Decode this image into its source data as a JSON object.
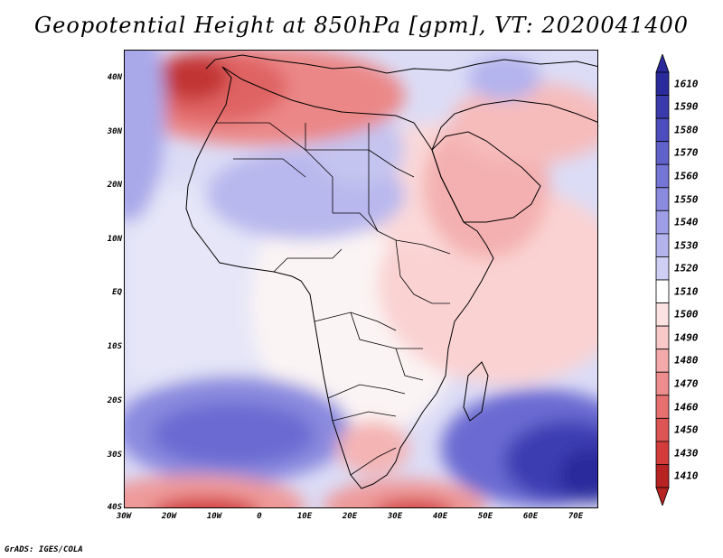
{
  "title": "Geopotential Height at 850hPa [gpm], VT: 2020041400",
  "credit": "GrADS: IGES/COLA",
  "axes": {
    "lat_labels": [
      "40N",
      "30N",
      "20N",
      "10N",
      "EQ",
      "10S",
      "20S",
      "30S",
      "40S"
    ],
    "lon_labels": [
      "30W",
      "20W",
      "10W",
      "0",
      "10E",
      "20E",
      "30E",
      "40E",
      "50E",
      "60E",
      "70E"
    ]
  },
  "colorbar": {
    "labels": [
      "1610",
      "1590",
      "1580",
      "1570",
      "1560",
      "1550",
      "1540",
      "1530",
      "1520",
      "1510",
      "1500",
      "1490",
      "1480",
      "1470",
      "1460",
      "1450",
      "1430",
      "1410"
    ],
    "colors": [
      "#2a2a9c",
      "#3a3aad",
      "#4d4dbf",
      "#6161cc",
      "#7575d6",
      "#8a8adf",
      "#9e9ee6",
      "#b3b3ee",
      "#cfcff5",
      "#ffffff",
      "#fde2e2",
      "#f9c8c8",
      "#f4aaaa",
      "#ee8d8d",
      "#e67070",
      "#dd5555",
      "#d43c3c",
      "#b72222"
    ]
  },
  "chart_data": {
    "type": "filled-contour-map",
    "variable": "Geopotential Height",
    "level": "850hPa",
    "units": "gpm",
    "valid_time": "2020041400",
    "lon_range": [
      -30,
      75
    ],
    "lat_range": [
      -40,
      45
    ]
  }
}
